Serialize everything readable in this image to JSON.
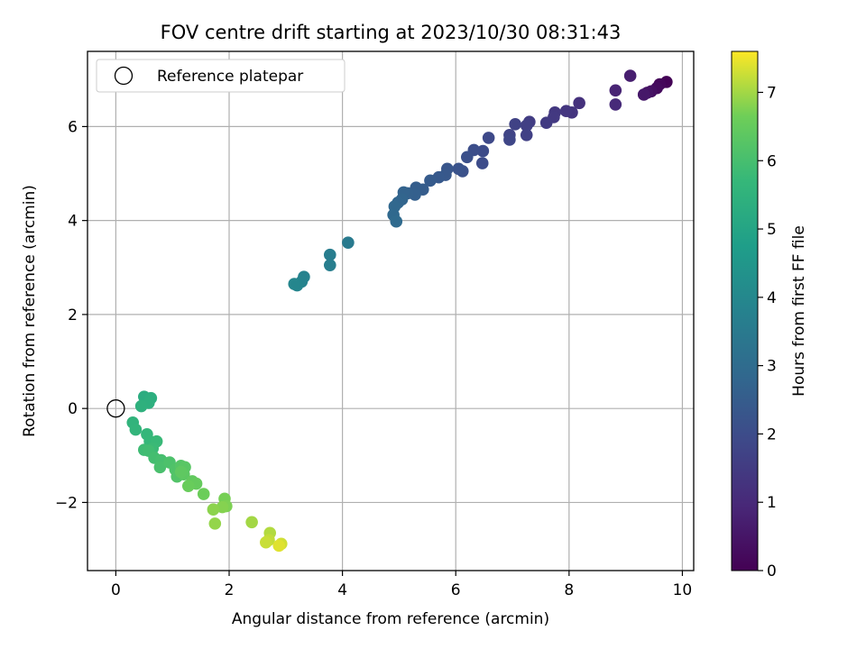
{
  "chart_data": {
    "type": "scatter",
    "title": "FOV centre drift starting at 2023/10/30 08:31:43",
    "xlabel": "Angular distance from reference (arcmin)",
    "ylabel": "Rotation from reference (arcmin)",
    "xlim": [
      -0.5,
      10.2
    ],
    "ylim": [
      -3.45,
      7.6
    ],
    "xticks": [
      0,
      2,
      4,
      6,
      8,
      10
    ],
    "xtick_labels": [
      "0",
      "2",
      "4",
      "6",
      "8",
      "10"
    ],
    "yticks": [
      -2,
      0,
      2,
      4,
      6
    ],
    "ytick_labels": [
      "−2",
      "0",
      "2",
      "4",
      "6"
    ],
    "grid": true,
    "legend": {
      "position": "top-left",
      "entries": [
        "Reference platepar"
      ]
    },
    "reference_point": {
      "x": 0,
      "y": 0
    },
    "colorbar": {
      "label": "Hours from first FF file",
      "min": 0,
      "max": 7.6,
      "ticks": [
        0,
        1,
        2,
        3,
        4,
        5,
        6,
        7
      ],
      "tick_labels": [
        "0",
        "1",
        "2",
        "3",
        "4",
        "5",
        "6",
        "7"
      ],
      "colormap": "viridis"
    },
    "points": [
      {
        "x": 9.72,
        "y": 6.95,
        "h": 0.05
      },
      {
        "x": 9.6,
        "y": 6.9,
        "h": 0.15
      },
      {
        "x": 9.55,
        "y": 6.82,
        "h": 0.25
      },
      {
        "x": 9.45,
        "y": 6.75,
        "h": 0.35
      },
      {
        "x": 9.38,
        "y": 6.72,
        "h": 0.45
      },
      {
        "x": 9.32,
        "y": 6.68,
        "h": 0.55
      },
      {
        "x": 9.08,
        "y": 7.08,
        "h": 0.7
      },
      {
        "x": 8.82,
        "y": 6.77,
        "h": 0.85
      },
      {
        "x": 8.82,
        "y": 6.47,
        "h": 1.0
      },
      {
        "x": 8.18,
        "y": 6.5,
        "h": 1.2
      },
      {
        "x": 8.05,
        "y": 6.3,
        "h": 1.3
      },
      {
        "x": 7.95,
        "y": 6.33,
        "h": 1.35
      },
      {
        "x": 7.75,
        "y": 6.3,
        "h": 1.4
      },
      {
        "x": 7.73,
        "y": 6.2,
        "h": 1.45
      },
      {
        "x": 7.6,
        "y": 6.08,
        "h": 1.5
      },
      {
        "x": 7.3,
        "y": 6.1,
        "h": 1.55
      },
      {
        "x": 7.25,
        "y": 6.02,
        "h": 1.6
      },
      {
        "x": 7.25,
        "y": 5.82,
        "h": 1.65
      },
      {
        "x": 7.05,
        "y": 6.05,
        "h": 1.7
      },
      {
        "x": 6.95,
        "y": 5.82,
        "h": 1.75
      },
      {
        "x": 6.95,
        "y": 5.72,
        "h": 1.8
      },
      {
        "x": 6.58,
        "y": 5.76,
        "h": 1.9
      },
      {
        "x": 6.48,
        "y": 5.48,
        "h": 1.95
      },
      {
        "x": 6.47,
        "y": 5.22,
        "h": 2.0
      },
      {
        "x": 6.32,
        "y": 5.5,
        "h": 2.05
      },
      {
        "x": 6.2,
        "y": 5.35,
        "h": 2.1
      },
      {
        "x": 6.12,
        "y": 5.05,
        "h": 2.15
      },
      {
        "x": 6.05,
        "y": 5.1,
        "h": 2.2
      },
      {
        "x": 5.85,
        "y": 5.1,
        "h": 2.3
      },
      {
        "x": 5.82,
        "y": 4.97,
        "h": 2.35
      },
      {
        "x": 5.7,
        "y": 4.92,
        "h": 2.4
      },
      {
        "x": 5.55,
        "y": 4.85,
        "h": 2.45
      },
      {
        "x": 5.42,
        "y": 4.66,
        "h": 2.5
      },
      {
        "x": 5.3,
        "y": 4.7,
        "h": 2.55
      },
      {
        "x": 5.28,
        "y": 4.55,
        "h": 2.6
      },
      {
        "x": 5.15,
        "y": 4.58,
        "h": 2.65
      },
      {
        "x": 5.08,
        "y": 4.6,
        "h": 2.7
      },
      {
        "x": 5.05,
        "y": 4.45,
        "h": 2.75
      },
      {
        "x": 4.98,
        "y": 4.38,
        "h": 2.8
      },
      {
        "x": 4.92,
        "y": 4.3,
        "h": 2.85
      },
      {
        "x": 4.9,
        "y": 4.12,
        "h": 2.9
      },
      {
        "x": 4.95,
        "y": 3.98,
        "h": 2.95
      },
      {
        "x": 4.1,
        "y": 3.53,
        "h": 3.5
      },
      {
        "x": 3.78,
        "y": 3.27,
        "h": 3.6
      },
      {
        "x": 3.78,
        "y": 3.05,
        "h": 3.65
      },
      {
        "x": 3.32,
        "y": 2.8,
        "h": 3.8
      },
      {
        "x": 3.28,
        "y": 2.7,
        "h": 3.85
      },
      {
        "x": 3.2,
        "y": 2.62,
        "h": 3.9
      },
      {
        "x": 3.15,
        "y": 2.65,
        "h": 3.95
      },
      {
        "x": 0.5,
        "y": 0.25,
        "h": 5.3
      },
      {
        "x": 0.62,
        "y": 0.22,
        "h": 5.35
      },
      {
        "x": 0.58,
        "y": 0.12,
        "h": 5.4
      },
      {
        "x": 0.45,
        "y": 0.05,
        "h": 5.45
      },
      {
        "x": 0.3,
        "y": -0.3,
        "h": 5.55
      },
      {
        "x": 0.35,
        "y": -0.45,
        "h": 5.6
      },
      {
        "x": 0.55,
        "y": -0.55,
        "h": 5.65
      },
      {
        "x": 0.6,
        "y": -0.7,
        "h": 5.7
      },
      {
        "x": 0.72,
        "y": -0.7,
        "h": 5.75
      },
      {
        "x": 0.65,
        "y": -0.85,
        "h": 5.8
      },
      {
        "x": 0.5,
        "y": -0.88,
        "h": 5.85
      },
      {
        "x": 0.58,
        "y": -0.9,
        "h": 5.9
      },
      {
        "x": 0.68,
        "y": -1.05,
        "h": 5.95
      },
      {
        "x": 0.8,
        "y": -1.1,
        "h": 6.0
      },
      {
        "x": 0.78,
        "y": -1.25,
        "h": 6.05
      },
      {
        "x": 0.95,
        "y": -1.15,
        "h": 6.1
      },
      {
        "x": 1.05,
        "y": -1.3,
        "h": 6.15
      },
      {
        "x": 1.08,
        "y": -1.45,
        "h": 6.2
      },
      {
        "x": 1.15,
        "y": -1.22,
        "h": 6.25
      },
      {
        "x": 1.22,
        "y": -1.25,
        "h": 6.3
      },
      {
        "x": 1.2,
        "y": -1.4,
        "h": 6.35
      },
      {
        "x": 1.15,
        "y": -1.35,
        "h": 6.4
      },
      {
        "x": 1.35,
        "y": -1.55,
        "h": 6.45
      },
      {
        "x": 1.42,
        "y": -1.6,
        "h": 6.5
      },
      {
        "x": 1.28,
        "y": -1.65,
        "h": 6.55
      },
      {
        "x": 1.55,
        "y": -1.82,
        "h": 6.6
      },
      {
        "x": 1.92,
        "y": -1.92,
        "h": 6.7
      },
      {
        "x": 1.95,
        "y": -2.08,
        "h": 6.75
      },
      {
        "x": 1.88,
        "y": -2.1,
        "h": 6.8
      },
      {
        "x": 1.72,
        "y": -2.15,
        "h": 6.85
      },
      {
        "x": 1.75,
        "y": -2.45,
        "h": 6.9
      },
      {
        "x": 2.4,
        "y": -2.42,
        "h": 7.0
      },
      {
        "x": 2.72,
        "y": -2.65,
        "h": 7.1
      },
      {
        "x": 2.7,
        "y": -2.8,
        "h": 7.2
      },
      {
        "x": 2.65,
        "y": -2.85,
        "h": 7.25
      },
      {
        "x": 2.92,
        "y": -2.88,
        "h": 7.3
      },
      {
        "x": 2.88,
        "y": -2.92,
        "h": 7.4
      }
    ]
  }
}
